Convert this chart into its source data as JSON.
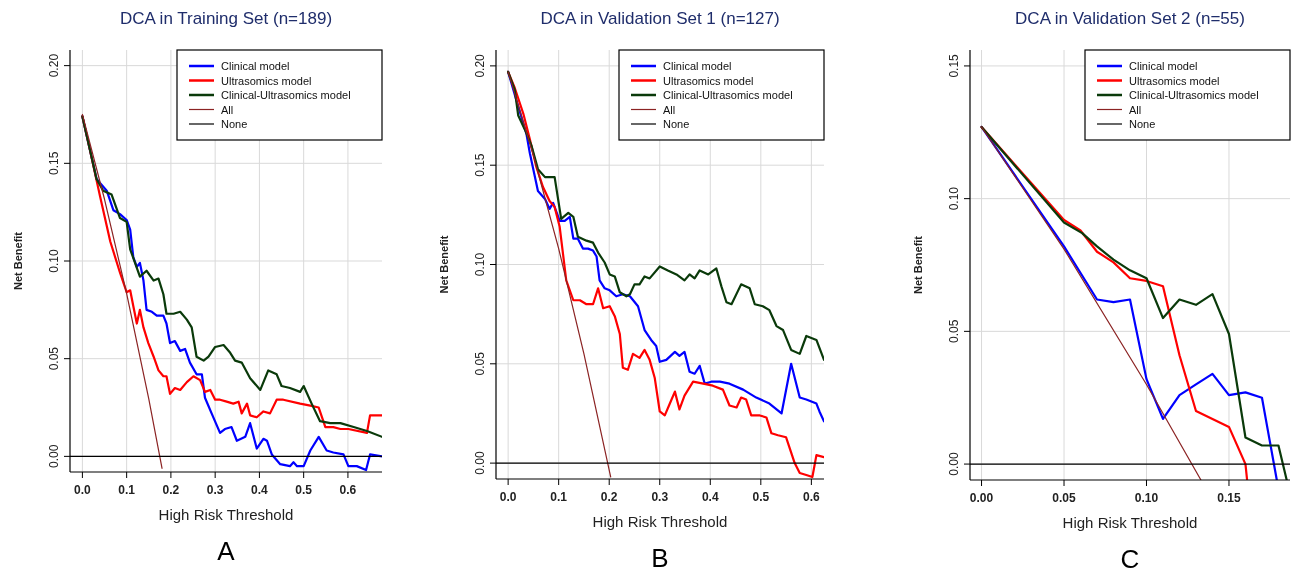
{
  "chart_data": [
    {
      "type": "line",
      "title": "DCA in Training Set (n=189)",
      "xlabel": "High Risk Threshold",
      "ylabel": "Net Benefit",
      "annotations": [
        "A"
      ],
      "grid": true,
      "legend": "top right",
      "xlim": [
        -0.028,
        0.677
      ],
      "ylim": [
        -0.008,
        0.208
      ],
      "xticks": [
        {
          "value": 0,
          "label": "0.0"
        },
        {
          "value": 0.1,
          "label": "0.1"
        },
        {
          "value": 0.2,
          "label": "0.2"
        },
        {
          "value": 0.3,
          "label": "0.3"
        },
        {
          "value": 0.4,
          "label": "0.4"
        },
        {
          "value": 0.5,
          "label": "0.5"
        },
        {
          "value": 0.6,
          "label": "0.6"
        }
      ],
      "yticks": [
        {
          "value": 0,
          "label": "0.00"
        },
        {
          "value": 0.05,
          "label": "0.05"
        },
        {
          "value": 0.1,
          "label": "0.10"
        },
        {
          "value": 0.15,
          "label": "0.15"
        },
        {
          "value": 0.2,
          "label": "0.20"
        }
      ],
      "series": [
        {
          "name": "Clinical model",
          "color": "#0000ff",
          "x": [
            0,
            0.032,
            0.055,
            0.07,
            0.085,
            0.1,
            0.108,
            0.115,
            0.123,
            0.13,
            0.138,
            0.145,
            0.157,
            0.168,
            0.183,
            0.19,
            0.198,
            0.209,
            0.221,
            0.232,
            0.243,
            0.258,
            0.27,
            0.277,
            0.292,
            0.311,
            0.322,
            0.337,
            0.349,
            0.368,
            0.379,
            0.394,
            0.409,
            0.417,
            0.428,
            0.447,
            0.469,
            0.477,
            0.485,
            0.5,
            0.515,
            0.534,
            0.552,
            0.567,
            0.59,
            0.601,
            0.62,
            0.641,
            0.65,
            0.677
          ],
          "values": [
            0.174,
            0.142,
            0.136,
            0.126,
            0.124,
            0.121,
            0.116,
            0.102,
            0.097,
            0.099,
            0.09,
            0.075,
            0.074,
            0.072,
            0.072,
            0.068,
            0.058,
            0.059,
            0.054,
            0.055,
            0.048,
            0.042,
            0.042,
            0.03,
            0.022,
            0.012,
            0.014,
            0.015,
            0.008,
            0.01,
            0.017,
            0.004,
            0.009,
            0.008,
            0.001,
            -0.004,
            -0.005,
            -0.003,
            -0.005,
            -0.005,
            0.003,
            0.01,
            0.003,
            0.002,
            0.001,
            -0.005,
            -0.005,
            -0.007,
            0.001,
            0
          ]
        },
        {
          "name": "Ultrasomics model",
          "color": "#ff0000",
          "x": [
            0,
            0.017,
            0.04,
            0.063,
            0.085,
            0.1,
            0.108,
            0.115,
            0.123,
            0.13,
            0.138,
            0.149,
            0.161,
            0.172,
            0.183,
            0.19,
            0.198,
            0.209,
            0.221,
            0.236,
            0.251,
            0.266,
            0.277,
            0.289,
            0.3,
            0.311,
            0.326,
            0.341,
            0.353,
            0.36,
            0.372,
            0.379,
            0.394,
            0.409,
            0.424,
            0.439,
            0.454,
            0.492,
            0.515,
            0.534,
            0.549,
            0.567,
            0.583,
            0.601,
            0.643,
            0.65,
            0.677
          ],
          "values": [
            0.174,
            0.157,
            0.133,
            0.11,
            0.094,
            0.084,
            0.085,
            0.077,
            0.068,
            0.075,
            0.066,
            0.058,
            0.051,
            0.044,
            0.041,
            0.041,
            0.032,
            0.035,
            0.034,
            0.038,
            0.041,
            0.039,
            0.033,
            0.034,
            0.029,
            0.029,
            0.028,
            0.027,
            0.028,
            0.022,
            0.027,
            0.021,
            0.02,
            0.023,
            0.022,
            0.029,
            0.029,
            0.027,
            0.026,
            0.025,
            0.015,
            0.015,
            0.014,
            0.014,
            0.012,
            0.021,
            0.021
          ]
        },
        {
          "name": "Clinical-Ultrasomics model",
          "color": "#0a3a0a",
          "x": [
            0,
            0.032,
            0.047,
            0.066,
            0.085,
            0.1,
            0.108,
            0.13,
            0.145,
            0.161,
            0.172,
            0.183,
            0.19,
            0.206,
            0.221,
            0.236,
            0.247,
            0.258,
            0.274,
            0.285,
            0.3,
            0.319,
            0.334,
            0.345,
            0.36,
            0.379,
            0.402,
            0.42,
            0.439,
            0.45,
            0.469,
            0.492,
            0.5,
            0.518,
            0.537,
            0.56,
            0.583,
            0.613,
            0.643,
            0.677
          ],
          "values": [
            0.174,
            0.142,
            0.136,
            0.134,
            0.122,
            0.12,
            0.106,
            0.092,
            0.095,
            0.09,
            0.091,
            0.083,
            0.073,
            0.073,
            0.074,
            0.07,
            0.066,
            0.051,
            0.049,
            0.051,
            0.056,
            0.057,
            0.053,
            0.049,
            0.048,
            0.04,
            0.034,
            0.044,
            0.042,
            0.036,
            0.035,
            0.033,
            0.036,
            0.027,
            0.018,
            0.017,
            0.017,
            0.015,
            0.013,
            0.01
          ]
        },
        {
          "name": "All",
          "color": "#8b2323",
          "x": [
            0,
            0.05,
            0.1,
            0.15,
            0.18
          ],
          "values": [
            0.175,
            0.1316,
            0.0833,
            0.0294,
            -0.0061
          ]
        },
        {
          "name": "None",
          "color": "#000000",
          "x": [
            -0.028,
            0.677
          ],
          "values": [
            0,
            0
          ]
        }
      ]
    },
    {
      "type": "line",
      "title": "DCA in Validation Set 1 (n=127)",
      "xlabel": "High Risk Threshold",
      "ylabel": "Net Benefit",
      "annotations": [
        "B"
      ],
      "grid": true,
      "legend": "top right",
      "xlim": [
        -0.024,
        0.625
      ],
      "ylim": [
        -0.008,
        0.208
      ],
      "xticks": [
        {
          "value": 0,
          "label": "0.0"
        },
        {
          "value": 0.1,
          "label": "0.1"
        },
        {
          "value": 0.2,
          "label": "0.2"
        },
        {
          "value": 0.3,
          "label": "0.3"
        },
        {
          "value": 0.4,
          "label": "0.4"
        },
        {
          "value": 0.5,
          "label": "0.5"
        },
        {
          "value": 0.6,
          "label": "0.6"
        }
      ],
      "yticks": [
        {
          "value": 0,
          "label": "0.00"
        },
        {
          "value": 0.05,
          "label": "0.05"
        },
        {
          "value": 0.1,
          "label": "0.10"
        },
        {
          "value": 0.15,
          "label": "0.15"
        },
        {
          "value": 0.2,
          "label": "0.20"
        }
      ],
      "series": [
        {
          "name": "Clinical model",
          "color": "#0000ff",
          "x": [
            0,
            0.016,
            0.036,
            0.043,
            0.059,
            0.073,
            0.082,
            0.089,
            0.102,
            0.112,
            0.122,
            0.129,
            0.138,
            0.148,
            0.158,
            0.168,
            0.175,
            0.181,
            0.191,
            0.201,
            0.214,
            0.227,
            0.241,
            0.257,
            0.27,
            0.283,
            0.293,
            0.3,
            0.313,
            0.33,
            0.339,
            0.349,
            0.359,
            0.369,
            0.379,
            0.389,
            0.402,
            0.419,
            0.438,
            0.465,
            0.491,
            0.517,
            0.541,
            0.56,
            0.577,
            0.59,
            0.61,
            0.616,
            0.625
          ],
          "values": [
            0.197,
            0.183,
            0.166,
            0.156,
            0.137,
            0.133,
            0.128,
            0.131,
            0.122,
            0.122,
            0.124,
            0.113,
            0.113,
            0.108,
            0.108,
            0.107,
            0.104,
            0.092,
            0.088,
            0.087,
            0.084,
            0.085,
            0.084,
            0.079,
            0.067,
            0.062,
            0.059,
            0.051,
            0.052,
            0.056,
            0.054,
            0.056,
            0.046,
            0.045,
            0.049,
            0.04,
            0.041,
            0.041,
            0.04,
            0.037,
            0.033,
            0.03,
            0.025,
            0.05,
            0.033,
            0.032,
            0.03,
            0.026,
            0.021
          ]
        },
        {
          "name": "Ultrasomics model",
          "color": "#ff0000",
          "x": [
            0,
            0.013,
            0.03,
            0.043,
            0.056,
            0.069,
            0.082,
            0.092,
            0.102,
            0.115,
            0.129,
            0.142,
            0.155,
            0.168,
            0.178,
            0.188,
            0.201,
            0.211,
            0.221,
            0.227,
            0.237,
            0.247,
            0.26,
            0.27,
            0.28,
            0.29,
            0.3,
            0.31,
            0.32,
            0.33,
            0.339,
            0.349,
            0.366,
            0.386,
            0.405,
            0.425,
            0.438,
            0.452,
            0.461,
            0.471,
            0.481,
            0.498,
            0.511,
            0.521,
            0.534,
            0.55,
            0.567,
            0.577,
            0.59,
            0.602,
            0.61,
            0.625
          ],
          "values": [
            0.197,
            0.189,
            0.176,
            0.163,
            0.149,
            0.139,
            0.132,
            0.129,
            0.119,
            0.092,
            0.082,
            0.082,
            0.08,
            0.08,
            0.088,
            0.078,
            0.079,
            0.074,
            0.065,
            0.048,
            0.047,
            0.055,
            0.053,
            0.057,
            0.052,
            0.043,
            0.026,
            0.024,
            0.03,
            0.036,
            0.027,
            0.034,
            0.041,
            0.04,
            0.039,
            0.037,
            0.029,
            0.028,
            0.033,
            0.032,
            0.024,
            0.024,
            0.023,
            0.015,
            0.014,
            0.013,
            0,
            -0.005,
            -0.006,
            -0.007,
            0.004,
            0.003
          ]
        },
        {
          "name": "Clinical-Ultrasomics model",
          "color": "#0a3a0a",
          "x": [
            0,
            0.013,
            0.02,
            0.033,
            0.046,
            0.059,
            0.073,
            0.092,
            0.105,
            0.119,
            0.129,
            0.138,
            0.155,
            0.168,
            0.178,
            0.191,
            0.201,
            0.211,
            0.221,
            0.234,
            0.241,
            0.25,
            0.26,
            0.27,
            0.28,
            0.3,
            0.316,
            0.333,
            0.349,
            0.359,
            0.369,
            0.379,
            0.396,
            0.412,
            0.422,
            0.432,
            0.442,
            0.461,
            0.478,
            0.488,
            0.504,
            0.517,
            0.531,
            0.544,
            0.56,
            0.577,
            0.59,
            0.61,
            0.625
          ],
          "values": [
            0.197,
            0.188,
            0.175,
            0.168,
            0.16,
            0.148,
            0.144,
            0.144,
            0.123,
            0.126,
            0.124,
            0.114,
            0.112,
            0.111,
            0.106,
            0.101,
            0.095,
            0.094,
            0.086,
            0.084,
            0.085,
            0.09,
            0.09,
            0.094,
            0.093,
            0.099,
            0.097,
            0.095,
            0.092,
            0.095,
            0.093,
            0.097,
            0.095,
            0.098,
            0.089,
            0.081,
            0.08,
            0.09,
            0.088,
            0.08,
            0.079,
            0.077,
            0.069,
            0.067,
            0.057,
            0.055,
            0.064,
            0.062,
            0.052
          ]
        },
        {
          "name": "All",
          "color": "#8b2323",
          "x": [
            0,
            0.05,
            0.1,
            0.15,
            0.203
          ],
          "values": [
            0.197,
            0.155,
            0.108,
            0.055,
            -0.007
          ]
        },
        {
          "name": "None",
          "color": "#000000",
          "x": [
            -0.024,
            0.625
          ],
          "values": [
            0,
            0
          ]
        }
      ]
    },
    {
      "type": "line",
      "title": "DCA in Validation Set 2 (n=55)",
      "xlabel": "High Risk Threshold",
      "ylabel": "Net Benefit",
      "annotations": [
        "C"
      ],
      "grid": true,
      "legend": "top right",
      "xlim": [
        -0.007,
        0.187
      ],
      "ylim": [
        -0.006,
        0.156
      ],
      "xticks": [
        {
          "value": 0,
          "label": "0.00"
        },
        {
          "value": 0.05,
          "label": "0.05"
        },
        {
          "value": 0.1,
          "label": "0.10"
        },
        {
          "value": 0.15,
          "label": "0.15"
        }
      ],
      "yticks": [
        {
          "value": 0,
          "label": "0.00"
        },
        {
          "value": 0.05,
          "label": "0.05"
        },
        {
          "value": 0.1,
          "label": "0.10"
        },
        {
          "value": 0.15,
          "label": "0.15"
        }
      ],
      "series": [
        {
          "name": "Clinical model",
          "color": "#0000ff",
          "x": [
            0,
            0.05,
            0.07,
            0.08,
            0.09,
            0.1,
            0.11,
            0.12,
            0.13,
            0.14,
            0.15,
            0.16,
            0.17,
            0.179
          ],
          "values": [
            0.127,
            0.082,
            0.062,
            0.061,
            0.062,
            0.032,
            0.017,
            0.026,
            0.03,
            0.034,
            0.026,
            0.027,
            0.025,
            -0.006
          ]
        },
        {
          "name": "Ultrasomics model",
          "color": "#ff0000",
          "x": [
            0,
            0.05,
            0.06,
            0.07,
            0.08,
            0.09,
            0.1,
            0.11,
            0.12,
            0.13,
            0.14,
            0.15,
            0.16,
            0.161
          ],
          "values": [
            0.127,
            0.092,
            0.088,
            0.08,
            0.076,
            0.07,
            0.069,
            0.067,
            0.041,
            0.02,
            0.017,
            0.014,
            0,
            -0.006
          ]
        },
        {
          "name": "Clinical-Ultrasomics model",
          "color": "#0a3a0a",
          "x": [
            0,
            0.05,
            0.061,
            0.07,
            0.08,
            0.09,
            0.1,
            0.11,
            0.12,
            0.13,
            0.14,
            0.15,
            0.16,
            0.17,
            0.18,
            0.185
          ],
          "values": [
            0.127,
            0.091,
            0.087,
            0.082,
            0.077,
            0.073,
            0.07,
            0.055,
            0.062,
            0.06,
            0.064,
            0.049,
            0.01,
            0.007,
            0.007,
            -0.006
          ]
        },
        {
          "name": "All",
          "color": "#8b2323",
          "x": [
            0,
            0.05,
            0.1,
            0.133
          ],
          "values": [
            0.127,
            0.081,
            0.03,
            -0.006
          ]
        },
        {
          "name": "None",
          "color": "#000000",
          "x": [
            -0.007,
            0.187
          ],
          "values": [
            0,
            0
          ]
        }
      ]
    }
  ]
}
